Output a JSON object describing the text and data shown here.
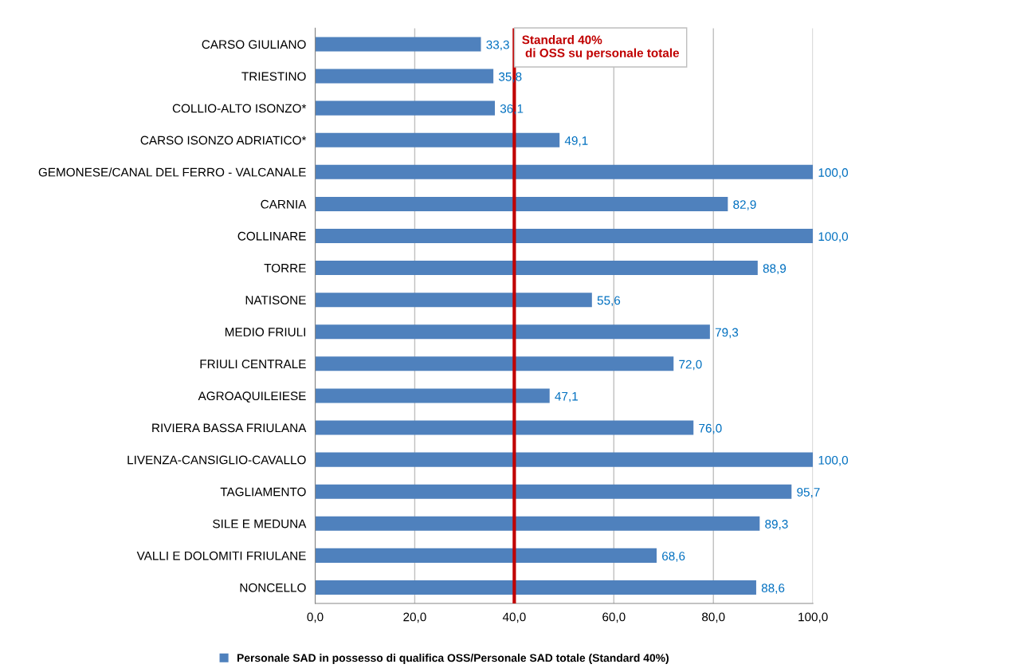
{
  "chart_data": {
    "type": "bar",
    "orientation": "horizontal",
    "categories": [
      "CARSO GIULIANO",
      "TRIESTINO",
      "COLLIO-ALTO ISONZO*",
      "CARSO ISONZO ADRIATICO*",
      "GEMONESE/CANAL DEL FERRO - VALCANALE",
      "CARNIA",
      "COLLINARE",
      "TORRE",
      "NATISONE",
      "MEDIO FRIULI",
      "FRIULI CENTRALE",
      "AGROAQUILEIESE",
      "RIVIERA BASSA FRIULANA",
      "LIVENZA-CANSIGLIO-CAVALLO",
      "TAGLIAMENTO",
      "SILE E MEDUNA",
      "VALLI E DOLOMITI FRIULANE",
      "NONCELLO"
    ],
    "series": [
      {
        "name": "Personale SAD in possesso di qualifica OSS/Personale SAD totale (Standard 40%)",
        "color": "#4f81bd",
        "values": [
          33.3,
          35.8,
          36.1,
          49.1,
          100.0,
          82.9,
          100.0,
          88.9,
          55.6,
          79.3,
          72.0,
          47.1,
          76.0,
          100.0,
          95.7,
          89.3,
          68.6,
          88.6
        ],
        "value_labels": [
          "33,3",
          "35,8",
          "36,1",
          "49,1",
          "100,0",
          "82,9",
          "100,0",
          "88,9",
          "55,6",
          "79,3",
          "72,0",
          "47,1",
          "76,0",
          "100,0",
          "95,7",
          "89,3",
          "68,6",
          "88,6"
        ]
      }
    ],
    "xlim": [
      0,
      100
    ],
    "xticks": [
      {
        "value": 0,
        "label": "0,0"
      },
      {
        "value": 20,
        "label": "20,0"
      },
      {
        "value": 40,
        "label": "40,0"
      },
      {
        "value": 60,
        "label": "60,0"
      },
      {
        "value": 80,
        "label": "80,0"
      },
      {
        "value": 100,
        "label": "100,0"
      }
    ],
    "grid": "x",
    "legend": "bottom",
    "ref_lines": [
      {
        "axis": "x",
        "value": 40,
        "label": "Standard 40%\n di OSS su personale totale",
        "color": "#c00000"
      }
    ]
  }
}
